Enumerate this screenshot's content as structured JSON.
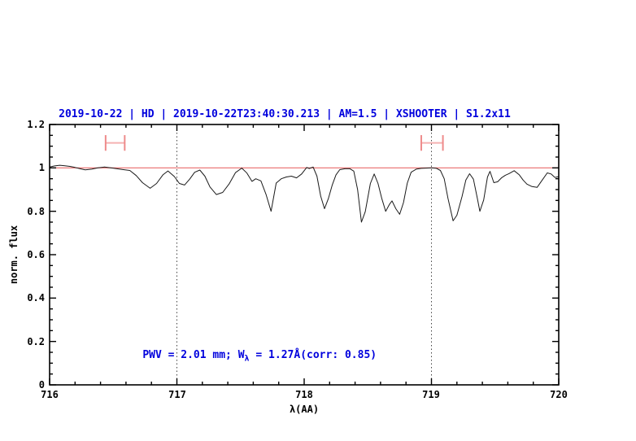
{
  "chart_data": {
    "type": "line",
    "title": "2019-10-22 | HD | 2019-10-22T23:40:30.213 | AM=1.5 | XSHOOTER | S1.2x11",
    "xlabel": "λ(AA)",
    "ylabel": "norm. flux",
    "xlim": [
      716,
      720
    ],
    "ylim": [
      0,
      1.2
    ],
    "x_tick_labels": [
      "716",
      "717",
      "718",
      "719",
      "720"
    ],
    "x_major_ticks": [
      716,
      717,
      718,
      719,
      720
    ],
    "x_minor_step": 0.2,
    "y_tick_labels": [
      "0",
      "0.2",
      "0.4",
      "0.6",
      "0.8",
      "1",
      "1.2"
    ],
    "y_major_ticks": [
      0,
      0.2,
      0.4,
      0.6,
      0.8,
      1,
      1.2
    ],
    "y_minor_step": 0.05,
    "dotted_vlines_x": [
      717,
      719
    ],
    "continuum_level": 1.0,
    "annotation": {
      "pre": "PWV = 2.01 mm; W",
      "sub": "λ",
      "post": " = 1.27Å(corr: 0.85)"
    },
    "range_markers": [
      {
        "x_start": 716.44,
        "x_end": 716.59,
        "y": 1.115,
        "cap_half_height": 0.036
      },
      {
        "x_start": 718.92,
        "x_end": 719.09,
        "y": 1.115,
        "cap_half_height": 0.036
      }
    ],
    "colors": {
      "title_text": "#0000dd",
      "annotation_text": "#0000dd",
      "spectrum_line": "#1a1a1a",
      "continuum_line": "#e96a6a",
      "marker_bar": "#f5b2b2",
      "marker_cap": "#ee8b8b",
      "axis": "#000000",
      "dotted_line": "#444444"
    },
    "legend": null,
    "grid": "off",
    "series": [
      {
        "name": "telluric-spectrum",
        "points": [
          [
            716.0,
            1.004
          ],
          [
            716.04,
            1.009
          ],
          [
            716.08,
            1.012
          ],
          [
            716.12,
            1.01
          ],
          [
            716.16,
            1.007
          ],
          [
            716.2,
            1.002
          ],
          [
            716.24,
            0.996
          ],
          [
            716.28,
            0.991
          ],
          [
            716.33,
            0.994
          ],
          [
            716.38,
            1.0
          ],
          [
            716.43,
            1.004
          ],
          [
            716.48,
            1.0
          ],
          [
            716.53,
            0.996
          ],
          [
            716.58,
            0.992
          ],
          [
            716.63,
            0.988
          ],
          [
            716.68,
            0.965
          ],
          [
            716.73,
            0.932
          ],
          [
            716.79,
            0.906
          ],
          [
            716.84,
            0.928
          ],
          [
            716.89,
            0.968
          ],
          [
            716.93,
            0.986
          ],
          [
            716.98,
            0.96
          ],
          [
            717.02,
            0.928
          ],
          [
            717.06,
            0.921
          ],
          [
            717.1,
            0.948
          ],
          [
            717.14,
            0.98
          ],
          [
            717.18,
            0.99
          ],
          [
            717.22,
            0.962
          ],
          [
            717.26,
            0.912
          ],
          [
            717.31,
            0.877
          ],
          [
            717.36,
            0.887
          ],
          [
            717.41,
            0.926
          ],
          [
            717.46,
            0.978
          ],
          [
            717.51,
            0.999
          ],
          [
            717.55,
            0.976
          ],
          [
            717.59,
            0.938
          ],
          [
            717.62,
            0.95
          ],
          [
            717.66,
            0.94
          ],
          [
            717.7,
            0.878
          ],
          [
            717.74,
            0.8
          ],
          [
            717.78,
            0.93
          ],
          [
            717.82,
            0.95
          ],
          [
            717.86,
            0.958
          ],
          [
            717.9,
            0.962
          ],
          [
            717.94,
            0.954
          ],
          [
            717.98,
            0.972
          ],
          [
            718.02,
            1.002
          ],
          [
            718.04,
            0.997
          ],
          [
            718.07,
            1.004
          ],
          [
            718.1,
            0.962
          ],
          [
            718.13,
            0.87
          ],
          [
            718.16,
            0.812
          ],
          [
            718.19,
            0.858
          ],
          [
            718.22,
            0.92
          ],
          [
            718.25,
            0.968
          ],
          [
            718.28,
            0.992
          ],
          [
            718.32,
            0.996
          ],
          [
            718.36,
            0.996
          ],
          [
            718.39,
            0.985
          ],
          [
            718.42,
            0.9
          ],
          [
            718.45,
            0.75
          ],
          [
            718.48,
            0.798
          ],
          [
            718.52,
            0.928
          ],
          [
            718.55,
            0.972
          ],
          [
            718.58,
            0.928
          ],
          [
            718.61,
            0.858
          ],
          [
            718.64,
            0.8
          ],
          [
            718.67,
            0.832
          ],
          [
            718.69,
            0.848
          ],
          [
            718.72,
            0.812
          ],
          [
            718.75,
            0.786
          ],
          [
            718.78,
            0.84
          ],
          [
            718.81,
            0.93
          ],
          [
            718.84,
            0.98
          ],
          [
            718.88,
            0.994
          ],
          [
            718.92,
            0.998
          ],
          [
            718.96,
            0.999
          ],
          [
            719.0,
            1.0
          ],
          [
            719.04,
            0.998
          ],
          [
            719.07,
            0.988
          ],
          [
            719.1,
            0.95
          ],
          [
            719.13,
            0.86
          ],
          [
            719.17,
            0.756
          ],
          [
            719.2,
            0.782
          ],
          [
            719.24,
            0.868
          ],
          [
            719.27,
            0.944
          ],
          [
            719.3,
            0.973
          ],
          [
            719.33,
            0.948
          ],
          [
            719.36,
            0.862
          ],
          [
            719.38,
            0.8
          ],
          [
            719.41,
            0.852
          ],
          [
            719.44,
            0.958
          ],
          [
            719.46,
            0.984
          ],
          [
            719.49,
            0.932
          ],
          [
            719.52,
            0.936
          ],
          [
            719.55,
            0.954
          ],
          [
            719.58,
            0.966
          ],
          [
            719.61,
            0.974
          ],
          [
            719.65,
            0.987
          ],
          [
            719.69,
            0.968
          ],
          [
            719.72,
            0.944
          ],
          [
            719.75,
            0.925
          ],
          [
            719.79,
            0.914
          ],
          [
            719.83,
            0.91
          ],
          [
            719.87,
            0.944
          ],
          [
            719.91,
            0.977
          ],
          [
            719.94,
            0.972
          ],
          [
            719.97,
            0.956
          ],
          [
            720.0,
            0.96
          ]
        ]
      }
    ]
  }
}
